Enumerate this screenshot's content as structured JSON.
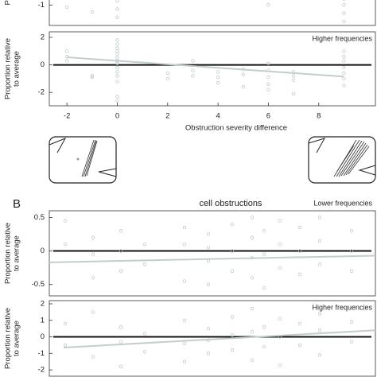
{
  "panel_label": "B",
  "chart_data": [
    {
      "type": "scatter",
      "ylabel": [
        "Proportion relative",
        "to average"
      ],
      "xlim": [
        -2.7,
        10.25
      ],
      "ylim": [
        -1.5,
        -0.8
      ],
      "yticks": [
        -1
      ],
      "reference_line": 0,
      "points": {
        "color": "#b7c3c6",
        "x": [
          -2,
          -1,
          0,
          0,
          0,
          6,
          9,
          9,
          9,
          9
        ],
        "y": [
          -1.05,
          -1.17,
          -0.9,
          -1.1,
          -1.3,
          -1.0,
          -0.85,
          -1.0,
          -1.2,
          -1.4
        ]
      }
    },
    {
      "type": "scatter",
      "annotation": "Higher frequencies",
      "ylabel": [
        "Proportion relative",
        "to average"
      ],
      "xlabel": "Obstruction severity difference",
      "xlim": [
        -2.7,
        10.25
      ],
      "ylim": [
        -2.97,
        2.4
      ],
      "xticks": [
        -2,
        0,
        2,
        4,
        6,
        8
      ],
      "yticks": [
        -2,
        0,
        2
      ],
      "reference_line": 0,
      "points": {
        "color": "#b7c3c6",
        "x": [
          -2,
          -2,
          -2,
          -1,
          -1,
          0,
          0,
          0,
          0,
          0,
          0,
          0,
          0,
          0,
          0,
          0,
          0,
          0,
          0,
          2,
          2,
          3,
          3,
          3,
          4,
          4,
          4,
          5,
          5,
          5,
          6,
          6,
          6,
          6,
          6,
          7,
          7,
          7,
          7,
          9,
          9,
          9,
          9,
          9,
          9,
          9
        ],
        "y": [
          1.0,
          0.6,
          0.3,
          -0.9,
          -0.8,
          1.8,
          1.5,
          1.2,
          1.0,
          0.8,
          0.5,
          0.3,
          0.1,
          -0.2,
          -0.5,
          -0.8,
          -1.2,
          -2.3,
          -2.6,
          -0.6,
          -1.0,
          0.3,
          -0.4,
          -0.8,
          -0.5,
          -0.9,
          -1.3,
          -0.3,
          -0.7,
          -1.6,
          0.1,
          -0.4,
          -0.9,
          -1.4,
          -1.8,
          -0.5,
          -0.8,
          -1.1,
          -2.1,
          1.0,
          0.6,
          0.3,
          -0.2,
          -0.6,
          -1.0,
          -1.5
        ]
      },
      "fit": {
        "color": "#c3cdcd",
        "x": [
          -2,
          9
        ],
        "y": [
          0.55,
          -0.85
        ]
      }
    },
    {
      "type": "scatter",
      "title": "cell obstructions",
      "annotation": "Lower frequencies",
      "ylabel": [
        "Proportion relative",
        "to average"
      ],
      "xlim": [
        0,
        41
      ],
      "ylim": [
        -0.67,
        0.6
      ],
      "yticks": [
        -0.5,
        0,
        0.5
      ],
      "reference_line": 0,
      "points": {
        "color": "#b7c3c6",
        "x": [
          2,
          2,
          5.5,
          5.5,
          5.5,
          9,
          9,
          9,
          12,
          12,
          17,
          17,
          17,
          20,
          20,
          20,
          20,
          23,
          23,
          23,
          25.5,
          25.5,
          25.5,
          25.5,
          27,
          27,
          27,
          29,
          29,
          29,
          31.5,
          31.5,
          31.5,
          34,
          34,
          34,
          38,
          38,
          38
        ],
        "y": [
          0.45,
          0.1,
          0.2,
          -0.05,
          -0.4,
          0.3,
          0.0,
          -0.3,
          0.1,
          -0.2,
          0.35,
          0.1,
          -0.45,
          0.25,
          0.05,
          -0.15,
          -0.5,
          0.4,
          0.0,
          -0.3,
          0.5,
          0.2,
          -0.1,
          -0.4,
          0.3,
          -0.05,
          -0.55,
          0.45,
          0.1,
          -0.25,
          0.35,
          0.0,
          -0.35,
          0.5,
          0.15,
          -0.2,
          0.3,
          0.0,
          -0.3
        ]
      },
      "fit": {
        "color": "#c3cdcd",
        "x": [
          0,
          41
        ],
        "y": [
          -0.17,
          -0.07
        ]
      }
    },
    {
      "type": "scatter",
      "annotation": "Higher frequencies",
      "ylabel": [
        "Proportion relative",
        "to average"
      ],
      "xlim": [
        0,
        41
      ],
      "ylim": [
        -2.38,
        2.19
      ],
      "yticks": [
        -2,
        -1,
        0,
        1,
        2
      ],
      "reference_line": 0,
      "points": {
        "color": "#b7c3c6",
        "x": [
          2,
          2,
          5.5,
          5.5,
          9,
          9,
          9,
          12,
          12,
          17,
          17,
          17,
          20,
          20,
          20,
          23,
          23,
          23,
          25.5,
          25.5,
          25.5,
          27,
          27,
          29,
          29,
          29,
          31.5,
          31.5,
          34,
          34,
          34,
          38,
          38
        ],
        "y": [
          0.8,
          -0.5,
          1.5,
          -1.2,
          0.6,
          -0.3,
          -1.8,
          0.2,
          -0.9,
          1.0,
          -0.4,
          -1.5,
          0.5,
          -0.2,
          -1.0,
          1.2,
          0.1,
          -0.8,
          1.7,
          0.3,
          -1.4,
          0.6,
          -0.6,
          1.1,
          0.0,
          -1.7,
          0.8,
          -0.5,
          1.4,
          0.4,
          -1.1,
          0.9,
          -0.3
        ]
      },
      "fit": {
        "color": "#c3cdcd",
        "x": [
          1.8,
          41
        ],
        "y": [
          -0.65,
          0.4
        ]
      }
    }
  ]
}
